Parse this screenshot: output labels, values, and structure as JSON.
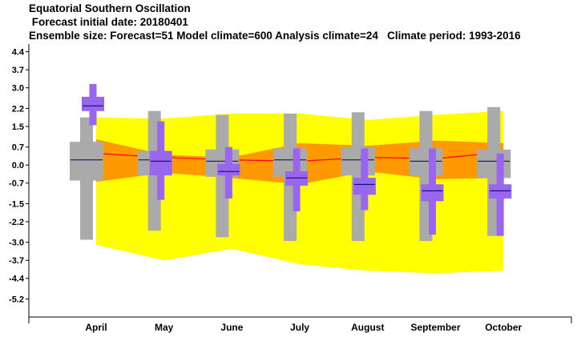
{
  "header": {
    "line1": "Equatorial Southern Oscillation",
    "line2": " Forecast initial date: 20180401",
    "line3": "Ensemble size: Forecast=51 Model climate=600 Analysis climate=24   Climate period: 1993-2016"
  },
  "chart_data": {
    "type": "box",
    "title": "Equatorial Southern Oscillation",
    "categories": [
      "April",
      "May",
      "June",
      "July",
      "August",
      "September",
      "October"
    ],
    "yticks": [
      "4.4",
      "3.7",
      "3.0",
      "2.2",
      "1.5",
      "0.7",
      "0.0",
      "-0.7",
      "-1.5",
      "-2.2",
      "-3.0",
      "-3.7",
      "-4.4",
      "-5.2"
    ],
    "ylim": [
      -5.9,
      4.7
    ],
    "colors": {
      "outer_band": "#ffff00",
      "inner_band": "#ff9900",
      "climate_box": "#aaaaaa",
      "forecast_box": "#9966ee",
      "median_line": "#ff0000",
      "median_mark": "#000066"
    },
    "climate_band": {
      "upper_outer": [
        1.85,
        1.8,
        2.0,
        2.0,
        1.75,
        1.95,
        2.1
      ],
      "upper_inner": [
        1.0,
        0.4,
        0.3,
        0.85,
        0.75,
        0.95,
        0.85
      ],
      "lower_inner": [
        -0.65,
        -0.3,
        -0.5,
        -0.75,
        -0.25,
        -0.55,
        -0.5
      ],
      "lower_outer": [
        -3.1,
        -3.7,
        -3.25,
        -3.85,
        -4.1,
        -4.2,
        -4.1
      ]
    },
    "median_line": [
      0.45,
      0.3,
      0.2,
      0.15,
      0.3,
      0.25,
      0.5
    ],
    "climate_boxes": [
      {
        "min": -2.9,
        "q10": -0.6,
        "q25": -0.6,
        "median": 0.2,
        "q75": 0.9,
        "q90": 0.9,
        "max": 1.85
      },
      {
        "min": -2.55,
        "q10": -0.4,
        "q25": -0.4,
        "median": 0.2,
        "q75": 0.55,
        "q90": 0.55,
        "max": 2.1
      },
      {
        "min": -2.8,
        "q10": -0.45,
        "q25": -0.45,
        "median": 0.15,
        "q75": 0.6,
        "q90": 0.6,
        "max": 1.95
      },
      {
        "min": -2.95,
        "q10": -0.45,
        "q25": -0.45,
        "median": 0.2,
        "q75": 0.65,
        "q90": 0.65,
        "max": 2.0
      },
      {
        "min": -2.95,
        "q10": -0.4,
        "q25": -0.4,
        "median": 0.2,
        "q75": 0.7,
        "q90": 0.7,
        "max": 2.05
      },
      {
        "min": -2.95,
        "q10": -0.4,
        "q25": -0.4,
        "median": 0.15,
        "q75": 0.65,
        "q90": 0.65,
        "max": 2.1
      },
      {
        "min": -2.75,
        "q10": -0.5,
        "q25": -0.5,
        "median": 0.15,
        "q75": 0.6,
        "q90": 0.6,
        "max": 2.25
      }
    ],
    "forecast_boxes": [
      {
        "min": 1.55,
        "q10": 2.1,
        "q25": 2.1,
        "median": 2.3,
        "q75": 2.65,
        "q90": 2.65,
        "max": 3.15
      },
      {
        "min": -1.35,
        "q10": -0.4,
        "q25": -0.2,
        "median": 0.15,
        "q75": 0.3,
        "q90": 0.55,
        "max": 1.7
      },
      {
        "min": -1.3,
        "q10": -0.4,
        "q25": -0.4,
        "median": -0.25,
        "q75": -0.05,
        "q90": 0.05,
        "max": 0.7
      },
      {
        "min": -1.8,
        "q10": -0.8,
        "q25": -0.8,
        "median": -0.5,
        "q75": -0.25,
        "q90": -0.25,
        "max": 0.65
      },
      {
        "min": -1.75,
        "q10": -1.15,
        "q25": -1.15,
        "median": -0.75,
        "q75": -0.5,
        "q90": -0.5,
        "max": 0.65
      },
      {
        "min": -2.7,
        "q10": -1.4,
        "q25": -1.4,
        "median": -1.0,
        "q75": -0.75,
        "q90": -0.75,
        "max": 0.65
      },
      {
        "min": -2.75,
        "q10": -1.3,
        "q25": -1.3,
        "median": -1.0,
        "q75": -0.75,
        "q90": -0.75,
        "max": 0.45
      }
    ]
  }
}
